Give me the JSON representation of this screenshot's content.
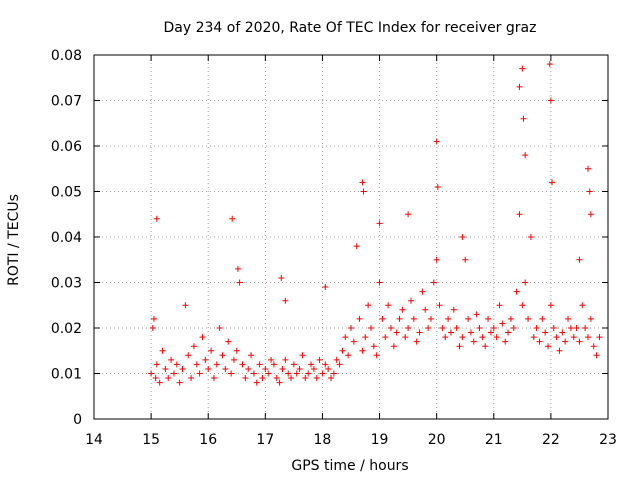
{
  "chart_data": {
    "type": "scatter",
    "title": "Day 234 of 2020, Rate Of TEC Index for receiver graz",
    "xlabel": "GPS time / hours",
    "ylabel": "ROTI / TECUs",
    "xlim": [
      14,
      23
    ],
    "ylim": [
      0,
      0.08
    ],
    "xticks": [
      14,
      15,
      16,
      17,
      18,
      19,
      20,
      21,
      22,
      23
    ],
    "xtick_labels": [
      "14",
      "15",
      "16",
      "17",
      "18",
      "19",
      "20",
      "21",
      "22",
      "23"
    ],
    "yticks": [
      0,
      0.01,
      0.02,
      0.03,
      0.04,
      0.05,
      0.06,
      0.07,
      0.08
    ],
    "ytick_labels": [
      "0",
      "0.01",
      "0.02",
      "0.03",
      "0.04",
      "0.05",
      "0.06",
      "0.07",
      "0.08"
    ],
    "grid": true,
    "marker": "+",
    "series": [
      {
        "name": "ROTI",
        "color": "#ff0000",
        "x": [
          15.0,
          15.03,
          15.05,
          15.08,
          15.1,
          15.15,
          15.2,
          15.25,
          15.3,
          15.35,
          15.4,
          15.45,
          15.5,
          15.55,
          15.6,
          15.65,
          15.7,
          15.75,
          15.8,
          15.85,
          15.9,
          15.95,
          16.0,
          16.05,
          16.1,
          16.15,
          16.2,
          16.25,
          16.3,
          16.35,
          16.4,
          16.45,
          16.5,
          16.55,
          16.6,
          16.65,
          16.7,
          16.75,
          16.8,
          16.85,
          16.9,
          16.95,
          17.0,
          17.05,
          17.1,
          17.15,
          17.2,
          17.25,
          17.3,
          17.35,
          17.4,
          17.45,
          17.5,
          17.55,
          17.6,
          17.65,
          17.7,
          17.75,
          17.8,
          17.85,
          17.9,
          17.95,
          18.0,
          18.05,
          18.1,
          18.15,
          18.2,
          18.25,
          18.3,
          18.35,
          18.4,
          18.45,
          18.5,
          18.55,
          18.6,
          18.65,
          18.7,
          18.75,
          18.8,
          18.85,
          18.9,
          18.95,
          19.0,
          19.05,
          19.1,
          19.15,
          19.2,
          19.25,
          19.3,
          19.35,
          19.4,
          19.45,
          19.5,
          19.55,
          19.6,
          19.65,
          19.7,
          19.75,
          19.8,
          19.85,
          19.9,
          19.95,
          20.0,
          20.05,
          20.1,
          20.15,
          20.2,
          20.25,
          20.3,
          20.35,
          20.4,
          20.45,
          20.5,
          20.55,
          20.6,
          20.65,
          20.7,
          20.75,
          20.8,
          20.85,
          20.9,
          20.95,
          21.0,
          21.05,
          21.1,
          21.15,
          21.2,
          21.25,
          21.3,
          21.35,
          21.4,
          21.45,
          21.5,
          21.55,
          21.6,
          21.65,
          21.7,
          21.75,
          21.8,
          21.85,
          21.9,
          21.95,
          22.0,
          22.05,
          22.1,
          22.15,
          22.2,
          22.25,
          22.3,
          22.35,
          22.4,
          22.45,
          22.5,
          22.55,
          22.6,
          22.65,
          22.7,
          22.75,
          22.8,
          22.85,
          15.1,
          16.42,
          16.52,
          17.28,
          17.35,
          18.05,
          18.7,
          18.72,
          19.0,
          19.5,
          20.0,
          20.02,
          20.45,
          21.45,
          21.5,
          21.52,
          21.55,
          21.98,
          22.0,
          22.02,
          22.5,
          22.65,
          22.68,
          22.7
        ],
        "y": [
          0.01,
          0.02,
          0.022,
          0.009,
          0.012,
          0.008,
          0.015,
          0.011,
          0.009,
          0.013,
          0.01,
          0.012,
          0.008,
          0.011,
          0.025,
          0.014,
          0.009,
          0.016,
          0.012,
          0.01,
          0.018,
          0.013,
          0.011,
          0.015,
          0.009,
          0.012,
          0.02,
          0.014,
          0.011,
          0.017,
          0.01,
          0.013,
          0.015,
          0.03,
          0.012,
          0.009,
          0.011,
          0.014,
          0.01,
          0.008,
          0.012,
          0.009,
          0.011,
          0.01,
          0.013,
          0.012,
          0.009,
          0.008,
          0.011,
          0.013,
          0.01,
          0.009,
          0.012,
          0.01,
          0.011,
          0.014,
          0.009,
          0.01,
          0.012,
          0.011,
          0.009,
          0.013,
          0.01,
          0.012,
          0.011,
          0.009,
          0.01,
          0.013,
          0.012,
          0.015,
          0.018,
          0.014,
          0.02,
          0.017,
          0.038,
          0.022,
          0.015,
          0.018,
          0.025,
          0.02,
          0.016,
          0.014,
          0.03,
          0.022,
          0.018,
          0.025,
          0.02,
          0.016,
          0.019,
          0.022,
          0.024,
          0.018,
          0.02,
          0.026,
          0.022,
          0.017,
          0.019,
          0.028,
          0.024,
          0.02,
          0.022,
          0.03,
          0.035,
          0.025,
          0.02,
          0.018,
          0.022,
          0.019,
          0.024,
          0.02,
          0.016,
          0.018,
          0.035,
          0.022,
          0.019,
          0.017,
          0.023,
          0.02,
          0.018,
          0.016,
          0.022,
          0.019,
          0.02,
          0.018,
          0.025,
          0.021,
          0.017,
          0.019,
          0.022,
          0.02,
          0.028,
          0.045,
          0.025,
          0.03,
          0.022,
          0.04,
          0.018,
          0.02,
          0.017,
          0.022,
          0.019,
          0.016,
          0.025,
          0.02,
          0.018,
          0.015,
          0.019,
          0.017,
          0.022,
          0.02,
          0.018,
          0.02,
          0.017,
          0.025,
          0.02,
          0.018,
          0.022,
          0.016,
          0.014,
          0.018,
          0.044,
          0.044,
          0.033,
          0.031,
          0.026,
          0.029,
          0.052,
          0.05,
          0.043,
          0.045,
          0.061,
          0.051,
          0.04,
          0.073,
          0.077,
          0.066,
          0.058,
          0.078,
          0.07,
          0.052,
          0.035,
          0.055,
          0.05,
          0.045
        ]
      }
    ]
  }
}
